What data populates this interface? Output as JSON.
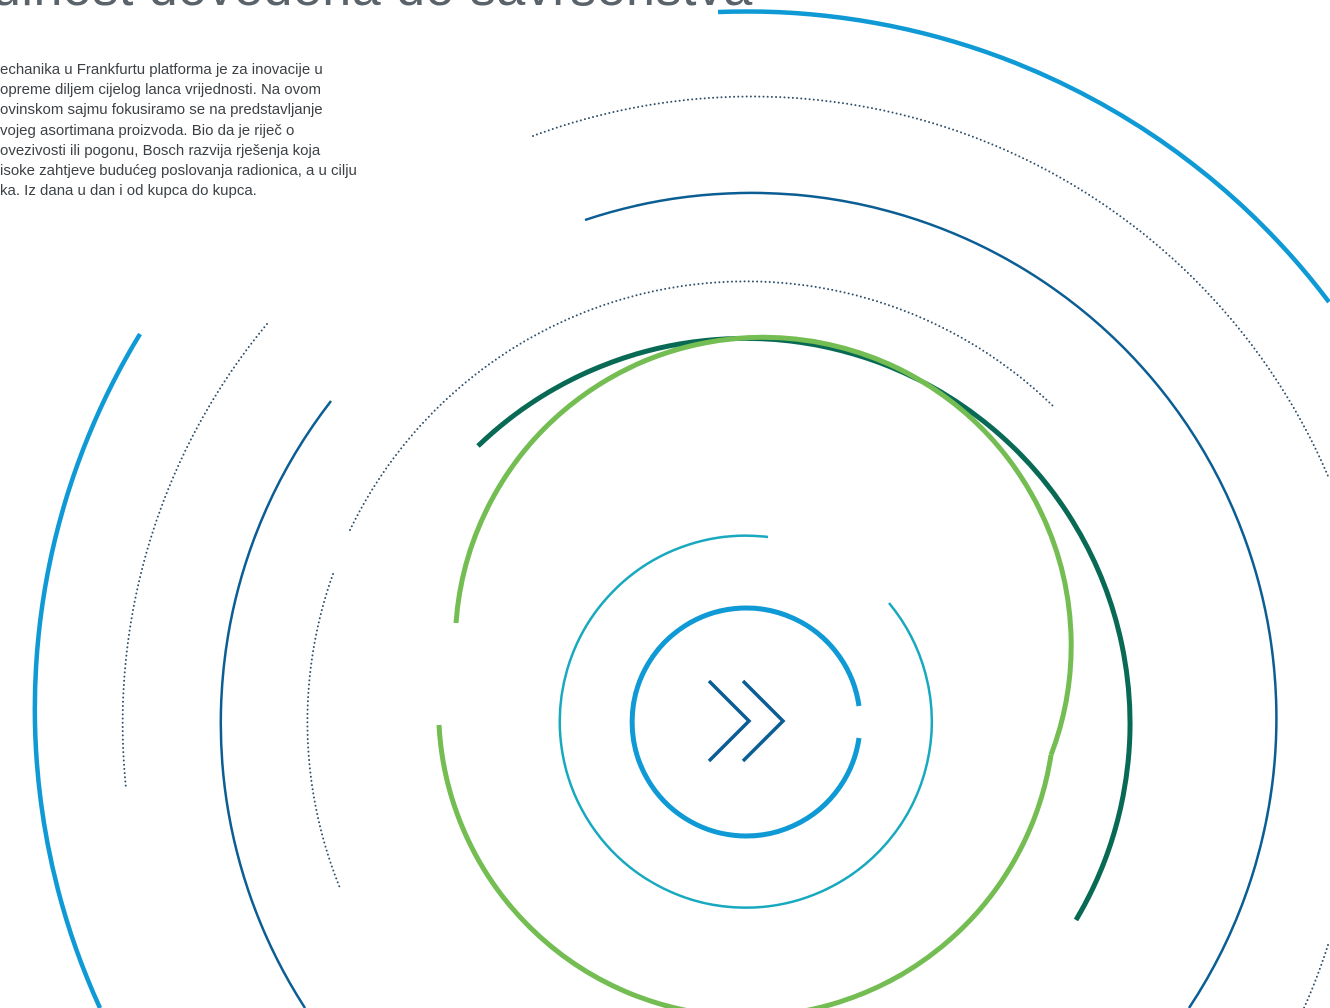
{
  "header": {
    "title": "ulnost dovedena do savršenstva"
  },
  "intro": {
    "lines": [
      "echanika u Frankfurtu platforma je za inovacije u",
      "opreme diljem cijelog lanca vrijednosti. Na ovom",
      "ovinskom sajmu fokusiramo se na predstavljanje",
      "vojeg asortimana proizvoda. Bio da je riječ o",
      "ovezivosti ili pogonu, Bosch razvija rješenja koja",
      "isoke zahtjeve budućeg poslovanja radionica, a u cilju",
      "ka. Iz dana u dan i od kupca do kupca."
    ]
  },
  "graphic": {
    "center_button_icon": "double-chevron-right-icon",
    "colors": {
      "light_blue": "#0f9ad6",
      "dark_blue": "#0b5e94",
      "dark_green": "#086a55",
      "light_green": "#74bd52",
      "turquoise": "#18a9bf",
      "dot_blue": "#2f4f6b",
      "text": "#3c4145",
      "title": "#5b636a"
    }
  }
}
